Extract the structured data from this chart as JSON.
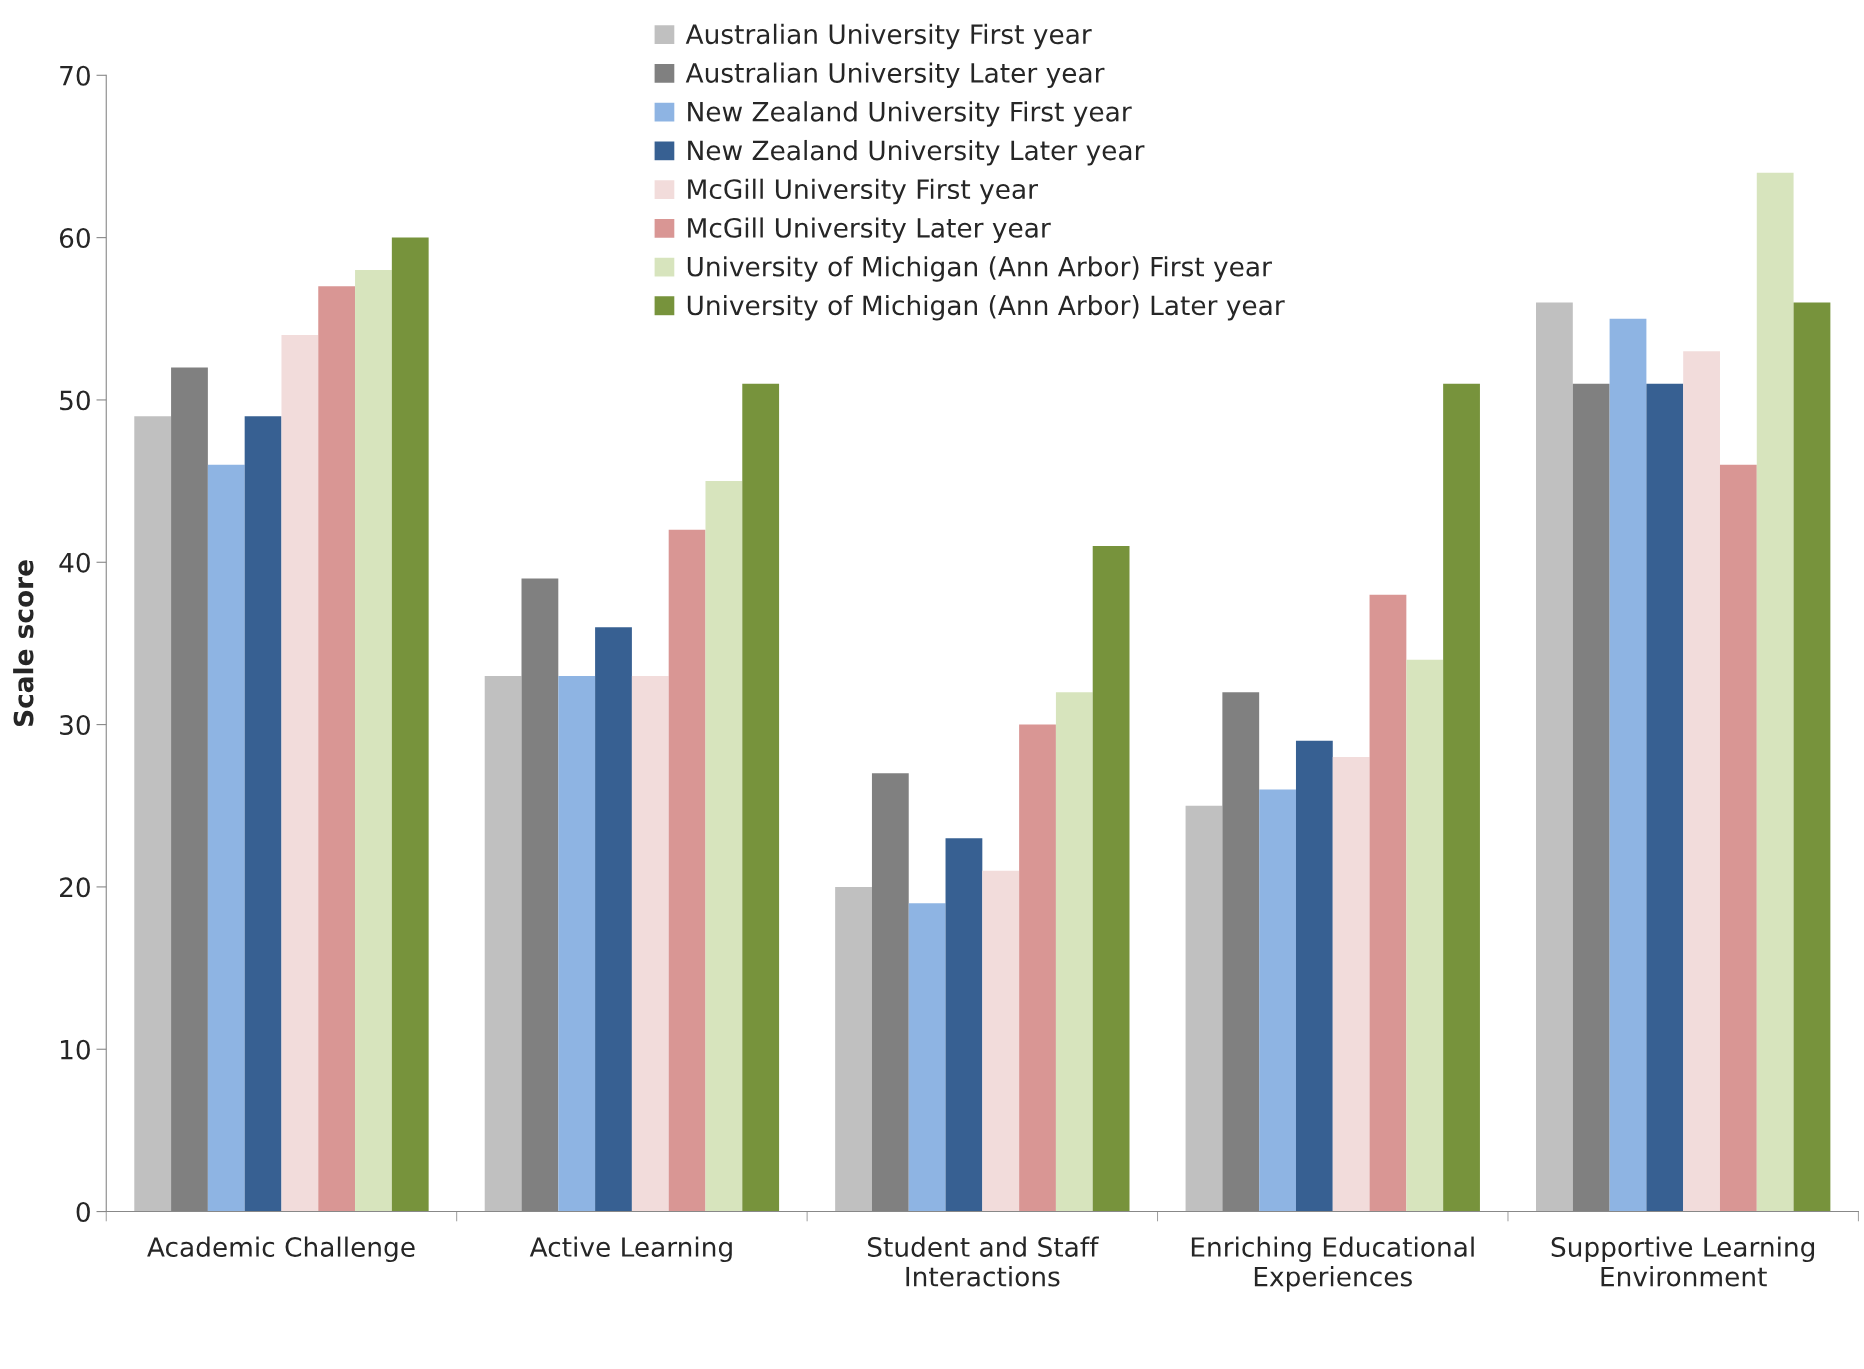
{
  "chart_data": {
    "type": "bar",
    "ylabel": "Scale score",
    "categories": [
      "Academic Challenge",
      "Active Learning",
      "Student and Staff Interactions",
      "Enriching Educational Experiences",
      "Supportive Learning Environment"
    ],
    "series": [
      {
        "name": "Australian University First year",
        "color": "#c0c0c0",
        "values": [
          49,
          33,
          20,
          25,
          56
        ]
      },
      {
        "name": "Australian University Later year",
        "color": "#808080",
        "values": [
          52,
          39,
          27,
          32,
          51
        ]
      },
      {
        "name": "New Zealand University First year",
        "color": "#8eb4e3",
        "values": [
          46,
          33,
          19,
          26,
          55
        ]
      },
      {
        "name": "New Zealand University Later year",
        "color": "#376092",
        "values": [
          49,
          36,
          23,
          29,
          51
        ]
      },
      {
        "name": "McGill University First year",
        "color": "#f2dcdb",
        "values": [
          54,
          33,
          21,
          28,
          53
        ]
      },
      {
        "name": "McGill University Later year",
        "color": "#d99694",
        "values": [
          57,
          42,
          30,
          38,
          46
        ]
      },
      {
        "name": "University of Michigan (Ann Arbor) First year",
        "color": "#d7e4bd",
        "values": [
          58,
          45,
          32,
          34,
          64
        ]
      },
      {
        "name": "University of Michigan (Ann Arbor) Later year",
        "color": "#77933c",
        "values": [
          60,
          51,
          41,
          51,
          56
        ]
      }
    ],
    "ylim": [
      0,
      70
    ],
    "yticks": [
      0,
      10,
      20,
      30,
      40,
      50,
      60,
      70
    ],
    "grid": false,
    "legend": "top"
  }
}
